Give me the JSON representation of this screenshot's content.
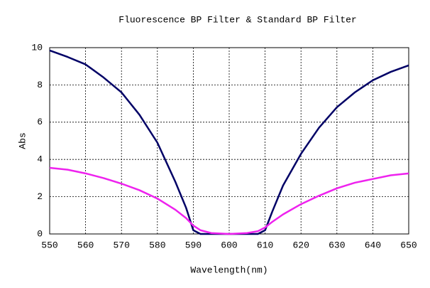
{
  "chart_data": {
    "type": "line",
    "title": "Fluorescence BP Filter & Standard BP Filter",
    "x_label": "Wavelength(nm)",
    "y_label": "Abs",
    "x": [
      550,
      555,
      560,
      565,
      570,
      575,
      580,
      585,
      588,
      590,
      592,
      595,
      600,
      605,
      608,
      610,
      612,
      615,
      620,
      625,
      630,
      635,
      640,
      645,
      650
    ],
    "series": [
      {
        "color": "#000066",
        "values": [
          9.85,
          9.5,
          9.1,
          8.4,
          7.6,
          6.4,
          4.9,
          2.8,
          1.4,
          0.2,
          0,
          0,
          0,
          0,
          0,
          0.2,
          1.2,
          2.6,
          4.3,
          5.7,
          6.8,
          7.6,
          8.25,
          8.7,
          9.05
        ]
      },
      {
        "color": "#ee22ee",
        "values": [
          3.55,
          3.45,
          3.25,
          3.0,
          2.7,
          2.35,
          1.9,
          1.3,
          0.85,
          0.45,
          0.2,
          0.05,
          0,
          0.05,
          0.15,
          0.35,
          0.65,
          1.05,
          1.6,
          2.05,
          2.45,
          2.75,
          2.95,
          3.15,
          3.25
        ]
      }
    ],
    "xlim": [
      550,
      650
    ],
    "xticks": [
      550,
      560,
      570,
      580,
      590,
      600,
      610,
      620,
      630,
      640,
      650
    ],
    "ylim": [
      0,
      10
    ],
    "yticks": [
      0,
      2,
      4,
      6,
      8,
      10
    ],
    "grid": true
  }
}
